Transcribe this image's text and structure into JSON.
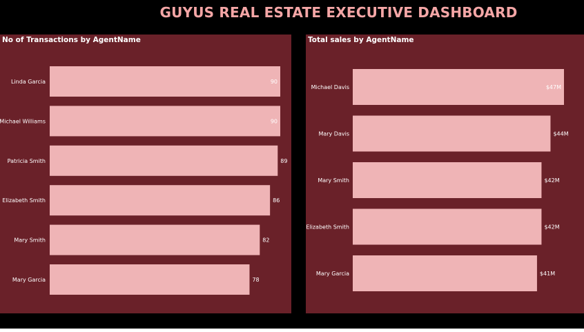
{
  "title": "GUYUS REAL ESTATE EXECUTIVE DASHBOARD",
  "colors": {
    "background": "#000000",
    "panel": "#6a2129",
    "bar": "#efb4b6",
    "title": "#f4a6a6",
    "text": "#ffffff"
  },
  "chart_data": [
    {
      "type": "bar",
      "orientation": "horizontal",
      "title": "No of Transactions by AgentName",
      "categories": [
        "Linda Garcia",
        "Michael Williams",
        "Patricia Smith",
        "Elizabeth Smith",
        "Mary Smith",
        "Mary Garcia"
      ],
      "values": [
        90,
        90,
        89,
        86,
        82,
        78
      ],
      "labels": [
        "90",
        "90",
        "89",
        "86",
        "82",
        "78"
      ],
      "xlim": [
        0,
        90
      ]
    },
    {
      "type": "bar",
      "orientation": "horizontal",
      "title": "Total sales by AgentName",
      "categories": [
        "Michael Davis",
        "Mary Davis",
        "Mary Smith",
        "Elizabeth Smith",
        "Mary Garcia"
      ],
      "values": [
        47,
        44,
        42,
        42,
        41
      ],
      "labels": [
        "$47M",
        "$44M",
        "$42M",
        "$42M",
        "$41M"
      ],
      "unit": "$M",
      "xlim": [
        0,
        47
      ]
    }
  ]
}
